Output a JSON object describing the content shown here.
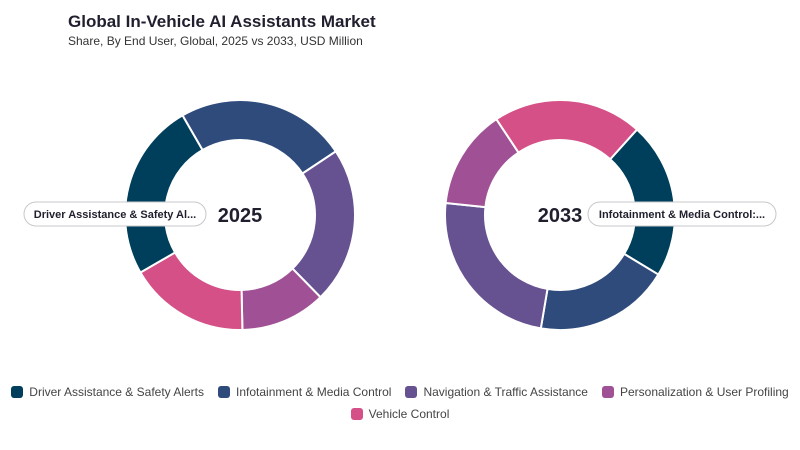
{
  "title": "Global In-Vehicle AI Assistants Market",
  "subtitle": "Share, By End User, Global, 2025 vs 2033, USD Million",
  "colors": {
    "Driver Assistance & Safety Alerts": "#003f5c",
    "Infotainment & Media Control": "#2f4b7c",
    "Navigation & Traffic Assistance": "#665191",
    "Personalization & User Profiling": "#a05195",
    "Vehicle Control": "#d45087"
  },
  "chart_data": [
    {
      "type": "pie",
      "center_label": "2025",
      "categories": [
        "Infotainment & Media Control",
        "Navigation & Traffic Assistance",
        "Personalization & User Profiling",
        "Vehicle Control",
        "Driver Assistance & Safety Alerts"
      ],
      "values": [
        24,
        22,
        12,
        17,
        25
      ],
      "tooltip": "Driver Assistance & Safety Al..."
    },
    {
      "type": "pie",
      "center_label": "2033",
      "categories": [
        "Driver Assistance & Safety Alerts",
        "Infotainment & Media Control",
        "Navigation & Traffic Assistance",
        "Personalization & User Profiling",
        "Vehicle Control"
      ],
      "values": [
        22,
        19,
        24,
        14,
        21
      ],
      "tooltip": "Infotainment & Media Control:..."
    }
  ],
  "legend": [
    "Driver Assistance & Safety Alerts",
    "Infotainment & Media Control",
    "Navigation & Traffic Assistance",
    "Personalization & User Profiling",
    "Vehicle Control"
  ]
}
